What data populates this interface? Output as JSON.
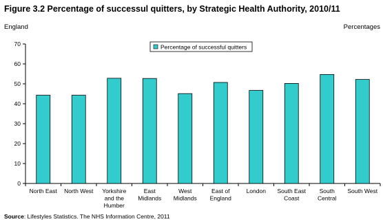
{
  "header": {
    "title": "Figure 3.2 Percentage of successul quitters, by Strategic Health Authority, 2010/11",
    "region": "England",
    "units": "Percentages"
  },
  "chart_data": {
    "type": "bar",
    "categories": [
      [
        "North East"
      ],
      [
        "North West"
      ],
      [
        "Yorkshire",
        "and the",
        "Humber"
      ],
      [
        "East",
        "Midlands"
      ],
      [
        "West",
        "Midlands"
      ],
      [
        "East of",
        "England"
      ],
      [
        "London"
      ],
      [
        "South East",
        "Coast"
      ],
      [
        "South",
        "Central"
      ],
      [
        "South West"
      ]
    ],
    "series": [
      {
        "name": "Percentage of successful quitters",
        "values": [
          44.3,
          44.3,
          52.8,
          52.7,
          45.1,
          50.7,
          46.7,
          50.2,
          54.7,
          52.2
        ]
      }
    ],
    "ylim": [
      0,
      70
    ],
    "yticks": [
      0,
      10,
      20,
      30,
      40,
      50,
      60,
      70
    ],
    "grid": false,
    "legend": "top-center",
    "colors": {
      "bar": "#33CCCC",
      "outline": "#000000"
    }
  },
  "footer": {
    "source_label": "Source",
    "source_text": ": Lifestyles Statistics. The NHS Information Centre, 2011"
  }
}
